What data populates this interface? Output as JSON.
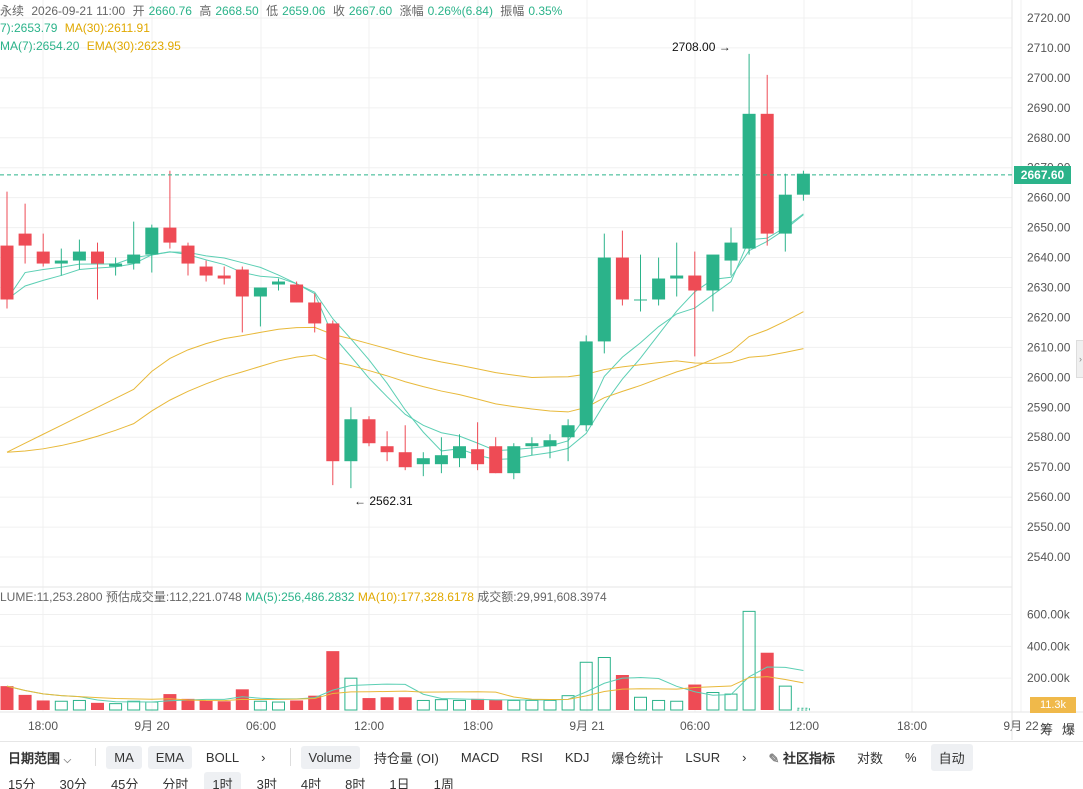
{
  "header": {
    "symbol_partial": "永续",
    "datetime": "2026-09-21 11:00",
    "open_label": "开",
    "open": "2660.76",
    "high_label": "高",
    "high": "2668.50",
    "low_label": "低",
    "low": "2659.06",
    "close_label": "收",
    "close": "2667.60",
    "change_label": "涨幅",
    "change": "0.26%(6.84)",
    "amp_label": "振幅",
    "amp": "0.35%",
    "ma7": "7):2653.79",
    "ma30": "MA(30):2611.91",
    "ema7": "MA(7):2654.20",
    "ema30": "EMA(30):2623.95"
  },
  "volume_info": {
    "volume": "LUME:11,253.2800",
    "est_label": "预估成交量:",
    "est": "112,221.0748",
    "ma5": "MA(5):256,486.2832",
    "ma10": "MA(10):177,328.6178",
    "turnover": "成交额:29,991,608.3974"
  },
  "price_axis": [
    "2720.00",
    "2710.00",
    "2700.00",
    "2690.00",
    "2680.00",
    "2670.00",
    "2660.00",
    "2650.00",
    "2640.00",
    "2630.00",
    "2620.00",
    "2610.00",
    "2600.00",
    "2590.00",
    "2580.00",
    "2570.00",
    "2560.00",
    "2550.00",
    "2540.00"
  ],
  "volume_axis": [
    "600.00k",
    "400.00k",
    "200.00k"
  ],
  "current_price": "2667.60",
  "current_volume": "11.3k",
  "max_annotation": "2708.00 →",
  "min_annotation": "← 2562.31",
  "time_axis": [
    {
      "label": "18:00",
      "x": 43
    },
    {
      "label": "9月 20",
      "x": 152
    },
    {
      "label": "06:00",
      "x": 261
    },
    {
      "label": "12:00",
      "x": 369
    },
    {
      "label": "18:00",
      "x": 478
    },
    {
      "label": "9月 21",
      "x": 587
    },
    {
      "label": "06:00",
      "x": 695
    },
    {
      "label": "12:00",
      "x": 804
    },
    {
      "label": "18:00",
      "x": 912
    },
    {
      "label": "9月 22",
      "x": 1021
    }
  ],
  "axis_corner": [
    "筹",
    "爆"
  ],
  "colors": {
    "up": "#2bb38a",
    "down": "#ee4b55",
    "ma_fast": "#5ccfb4",
    "ma_slow": "#e8b93a",
    "grid": "#f0f0f0"
  },
  "chart_data": {
    "type": "candlestick",
    "price_range": [
      2535,
      2722
    ],
    "volume_range": [
      0,
      660000
    ],
    "candles": [
      {
        "o": 2644,
        "h": 2662,
        "l": 2623,
        "c": 2626,
        "v": 150000
      },
      {
        "o": 2648,
        "h": 2658,
        "l": 2638,
        "c": 2644,
        "v": 95000
      },
      {
        "o": 2642,
        "h": 2648,
        "l": 2637,
        "c": 2638,
        "v": 60000
      },
      {
        "o": 2638,
        "h": 2643,
        "l": 2634,
        "c": 2639,
        "v": 55000
      },
      {
        "o": 2639,
        "h": 2646,
        "l": 2636,
        "c": 2642,
        "v": 60000
      },
      {
        "o": 2642,
        "h": 2645,
        "l": 2626,
        "c": 2638,
        "v": 45000
      },
      {
        "o": 2637,
        "h": 2640,
        "l": 2634,
        "c": 2638,
        "v": 40000
      },
      {
        "o": 2638,
        "h": 2652,
        "l": 2636,
        "c": 2641,
        "v": 55000
      },
      {
        "o": 2641,
        "h": 2651,
        "l": 2635,
        "c": 2650,
        "v": 50000
      },
      {
        "o": 2650,
        "h": 2669,
        "l": 2643,
        "c": 2645,
        "v": 100000
      },
      {
        "o": 2644,
        "h": 2645,
        "l": 2634,
        "c": 2638,
        "v": 70000
      },
      {
        "o": 2637,
        "h": 2639,
        "l": 2632,
        "c": 2634,
        "v": 60000
      },
      {
        "o": 2634,
        "h": 2637,
        "l": 2631,
        "c": 2633,
        "v": 55000
      },
      {
        "o": 2636,
        "h": 2637,
        "l": 2615,
        "c": 2627,
        "v": 130000
      },
      {
        "o": 2627,
        "h": 2630,
        "l": 2617,
        "c": 2630,
        "v": 55000
      },
      {
        "o": 2631,
        "h": 2633,
        "l": 2629,
        "c": 2632,
        "v": 50000
      },
      {
        "o": 2631,
        "h": 2632,
        "l": 2625,
        "c": 2625,
        "v": 60000
      },
      {
        "o": 2625,
        "h": 2628,
        "l": 2615,
        "c": 2618,
        "v": 90000
      },
      {
        "o": 2618,
        "h": 2619,
        "l": 2564,
        "c": 2572,
        "v": 370000
      },
      {
        "o": 2572,
        "h": 2590,
        "l": 2563,
        "c": 2586,
        "v": 200000
      },
      {
        "o": 2586,
        "h": 2587,
        "l": 2577,
        "c": 2578,
        "v": 75000
      },
      {
        "o": 2577,
        "h": 2582,
        "l": 2572,
        "c": 2575,
        "v": 80000
      },
      {
        "o": 2575,
        "h": 2584,
        "l": 2569,
        "c": 2570,
        "v": 80000
      },
      {
        "o": 2571,
        "h": 2575,
        "l": 2567,
        "c": 2573,
        "v": 60000
      },
      {
        "o": 2571,
        "h": 2580,
        "l": 2568,
        "c": 2574,
        "v": 65000
      },
      {
        "o": 2573,
        "h": 2581,
        "l": 2570,
        "c": 2577,
        "v": 60000
      },
      {
        "o": 2576,
        "h": 2585,
        "l": 2569,
        "c": 2571,
        "v": 70000
      },
      {
        "o": 2577,
        "h": 2580,
        "l": 2568,
        "c": 2568,
        "v": 65000
      },
      {
        "o": 2568,
        "h": 2578,
        "l": 2566,
        "c": 2577,
        "v": 60000
      },
      {
        "o": 2577,
        "h": 2580,
        "l": 2574,
        "c": 2578,
        "v": 60000
      },
      {
        "o": 2577,
        "h": 2581,
        "l": 2573,
        "c": 2579,
        "v": 60000
      },
      {
        "o": 2580,
        "h": 2586,
        "l": 2572,
        "c": 2584,
        "v": 90000
      },
      {
        "o": 2584,
        "h": 2614,
        "l": 2582,
        "c": 2612,
        "v": 300000
      },
      {
        "o": 2612,
        "h": 2648,
        "l": 2608,
        "c": 2640,
        "v": 330000
      },
      {
        "o": 2640,
        "h": 2649,
        "l": 2624,
        "c": 2626,
        "v": 220000
      },
      {
        "o": 2626,
        "h": 2641,
        "l": 2622,
        "c": 2626,
        "v": 80000
      },
      {
        "o": 2626,
        "h": 2640,
        "l": 2624,
        "c": 2633,
        "v": 60000
      },
      {
        "o": 2633,
        "h": 2645,
        "l": 2627,
        "c": 2634,
        "v": 55000
      },
      {
        "o": 2634,
        "h": 2642,
        "l": 2607,
        "c": 2629,
        "v": 160000
      },
      {
        "o": 2629,
        "h": 2640,
        "l": 2622,
        "c": 2641,
        "v": 110000
      },
      {
        "o": 2639,
        "h": 2650,
        "l": 2634,
        "c": 2645,
        "v": 100000
      },
      {
        "o": 2643,
        "h": 2708,
        "l": 2641,
        "c": 2688,
        "v": 620000
      },
      {
        "o": 2688,
        "h": 2701,
        "l": 2644,
        "c": 2648,
        "v": 360000
      },
      {
        "o": 2648,
        "h": 2668,
        "l": 2642,
        "c": 2661,
        "v": 150000
      },
      {
        "o": 2661,
        "h": 2669,
        "l": 2659,
        "c": 2668,
        "v": 11253
      }
    ]
  },
  "toolbar": {
    "date_range": "日期范围",
    "items": [
      {
        "label": "MA",
        "sel": true
      },
      {
        "label": "EMA",
        "sel": true
      },
      {
        "label": "BOLL",
        "sel": false
      },
      {
        "label": "›",
        "sel": false
      }
    ],
    "sub_items": [
      {
        "label": "Volume",
        "sel": true
      },
      {
        "label": "持仓量 (OI)",
        "sel": false
      },
      {
        "label": "MACD",
        "sel": false
      },
      {
        "label": "RSI",
        "sel": false
      },
      {
        "label": "KDJ",
        "sel": false
      },
      {
        "label": "爆仓统计",
        "sel": false
      },
      {
        "label": "LSUR",
        "sel": false
      },
      {
        "label": "›",
        "sel": false
      }
    ],
    "community": "社区指标",
    "log": "对数",
    "percent": "%",
    "auto": "自动"
  },
  "intervals": [
    {
      "label": "15分",
      "sel": false
    },
    {
      "label": "30分",
      "sel": false
    },
    {
      "label": "45分",
      "sel": false
    },
    {
      "label": "分时",
      "sel": false
    },
    {
      "label": "1时",
      "sel": true
    },
    {
      "label": "3时",
      "sel": false
    },
    {
      "label": "4时",
      "sel": false
    },
    {
      "label": "8时",
      "sel": false
    },
    {
      "label": "1日",
      "sel": false
    },
    {
      "label": "1周",
      "sel": false
    }
  ]
}
